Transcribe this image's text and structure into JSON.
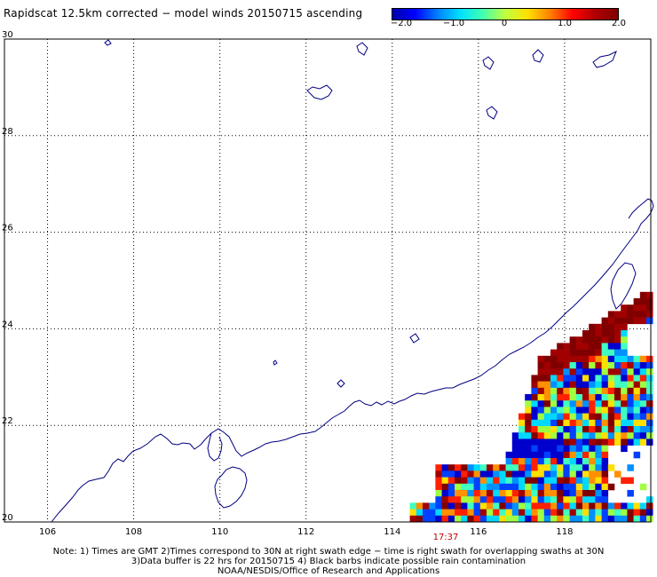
{
  "title": "Rapidscat 12.5km corrected − model winds 20150715 ascending",
  "colorbar": {
    "labels": [
      "−2.0",
      "−1.0",
      "0",
      "1.0",
      "2.0"
    ],
    "min": -2.0,
    "max": 2.0,
    "stops": [
      "#0000aa",
      "#0000ff",
      "#0080ff",
      "#00e0ff",
      "#40ffb0",
      "#c0ff40",
      "#ffe000",
      "#ff8000",
      "#ff0000",
      "#b00000",
      "#800000"
    ]
  },
  "map": {
    "lon_range": [
      105,
      120
    ],
    "lat_range": [
      20,
      30
    ],
    "lon_ticks": [
      "106",
      "108",
      "110",
      "112",
      "114",
      "116",
      "118"
    ],
    "lat_ticks": [
      "20",
      "22",
      "24",
      "26",
      "28",
      "30"
    ],
    "coastline_color": "#000080",
    "grid_style": "dotted",
    "swath_time": "17:37"
  },
  "notes": [
    "Note: 1) Times are GMT 2)Times correspond to 30N at right swath edge − time is right swath for overlapping swaths at 30N",
    "3)Data buffer is 22 hrs for 20150715 4) Black barbs indicate possible rain contamination",
    "NOAA/NESDIS/Office of Research and Applications"
  ]
}
